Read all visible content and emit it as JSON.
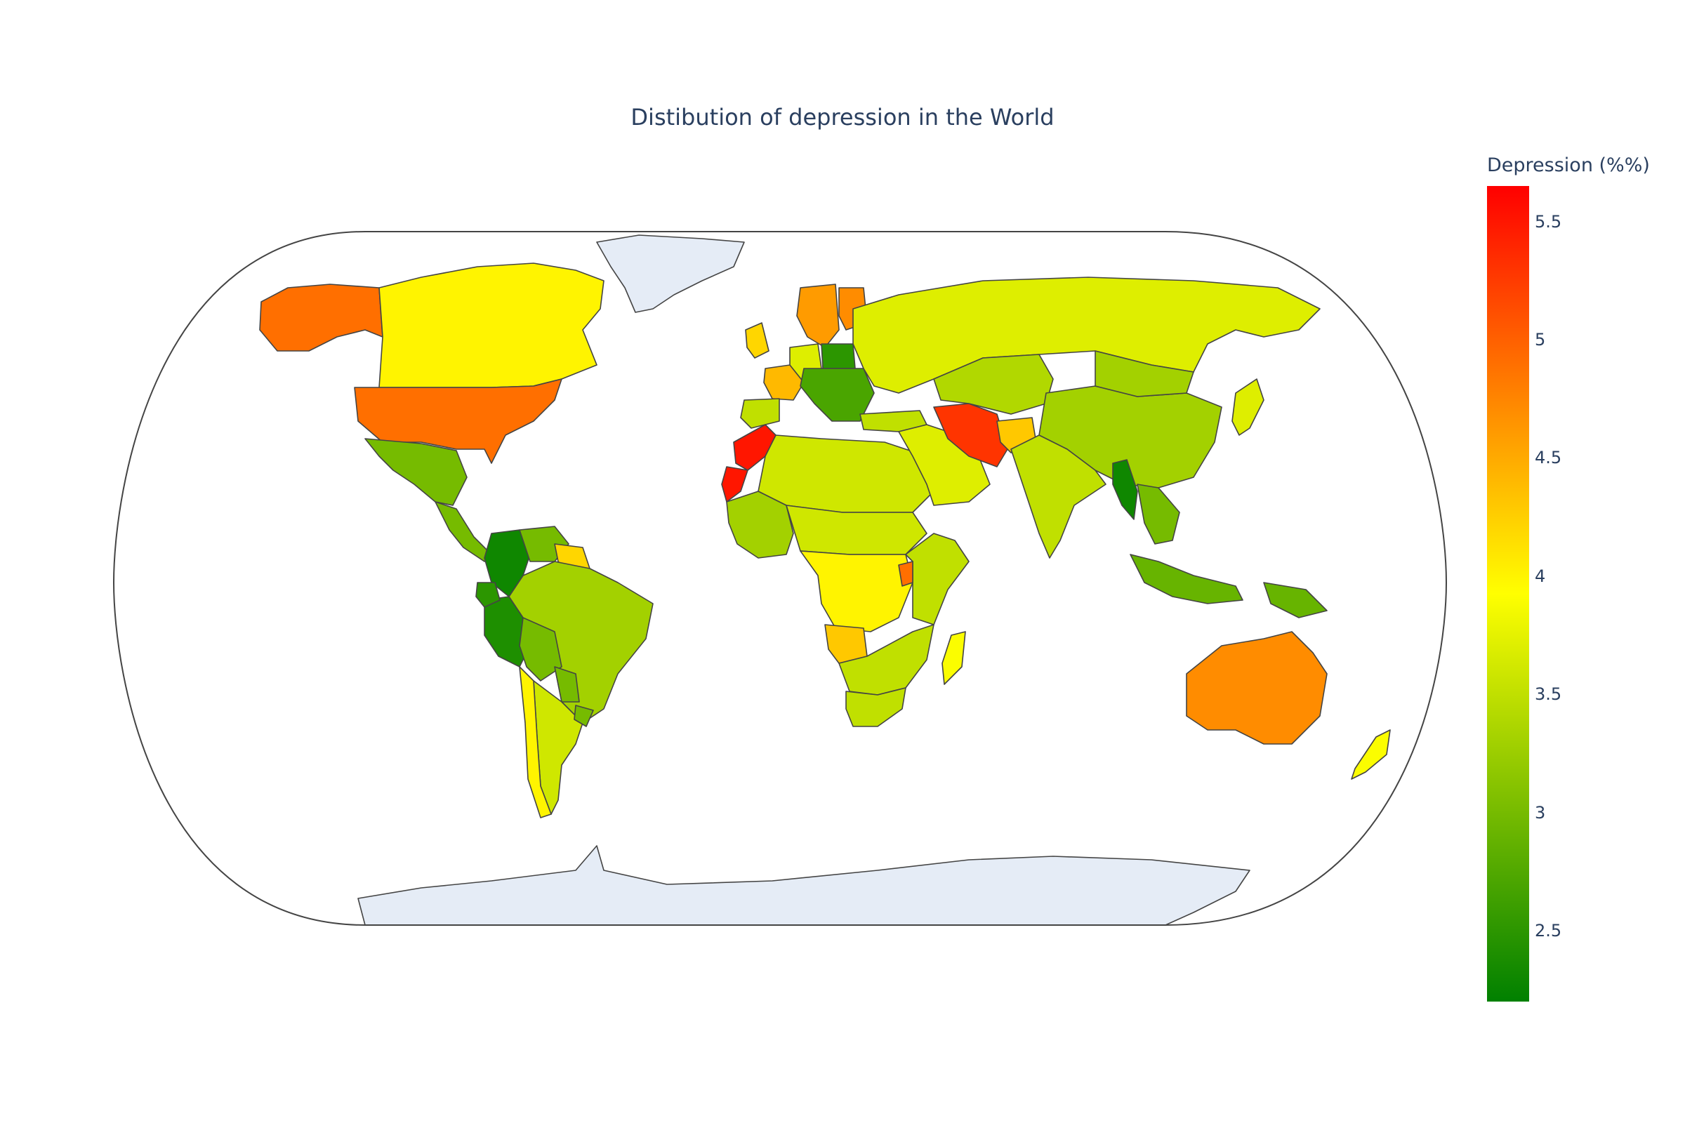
{
  "title": "Distibution of depression in the World",
  "colorbar": {
    "title": "Depression (%%)",
    "min": 2.2,
    "max": 5.65,
    "ticks": [
      "2.5",
      "3",
      "3.5",
      "4",
      "4.5",
      "5",
      "5.5"
    ],
    "colorscale": [
      "#008000",
      "#ffff00",
      "#ff0000"
    ]
  },
  "colors": {
    "no_data_land": "#e5ecf6",
    "border": "#444444",
    "frame": "#444444"
  },
  "chart_data": {
    "type": "choropleth",
    "projection": "natural earth",
    "value_range": [
      2.2,
      5.65
    ],
    "regions": [
      {
        "name": "Alaska",
        "value": 4.9
      },
      {
        "name": "Canada",
        "value": 4.0
      },
      {
        "name": "United States",
        "value": 4.9
      },
      {
        "name": "Mexico",
        "value": 3.0
      },
      {
        "name": "Central America",
        "value": 3.0
      },
      {
        "name": "Colombia",
        "value": 2.3
      },
      {
        "name": "Venezuela",
        "value": 3.0
      },
      {
        "name": "Guianas",
        "value": 4.2
      },
      {
        "name": "Peru",
        "value": 2.4
      },
      {
        "name": "Ecuador",
        "value": 2.5
      },
      {
        "name": "Brazil",
        "value": 3.3
      },
      {
        "name": "Bolivia",
        "value": 3.0
      },
      {
        "name": "Paraguay",
        "value": 3.0
      },
      {
        "name": "Argentina",
        "value": 3.6
      },
      {
        "name": "Chile",
        "value": 4.0
      },
      {
        "name": "Uruguay",
        "value": 3.0
      },
      {
        "name": "France",
        "value": 4.4
      },
      {
        "name": "Iberia",
        "value": 3.5
      },
      {
        "name": "United Kingdom",
        "value": 4.2
      },
      {
        "name": "Germany",
        "value": 3.7
      },
      {
        "name": "Scandinavia",
        "value": 4.6
      },
      {
        "name": "Finland",
        "value": 4.7
      },
      {
        "name": "Poland",
        "value": 2.5
      },
      {
        "name": "Eastern Europe",
        "value": 2.7
      },
      {
        "name": "Russia",
        "value": 3.7
      },
      {
        "name": "Turkey",
        "value": 3.5
      },
      {
        "name": "Morocco",
        "value": 5.5
      },
      {
        "name": "Western Sahara",
        "value": 5.5
      },
      {
        "name": "North Africa",
        "value": 3.6
      },
      {
        "name": "West Africa",
        "value": 3.3
      },
      {
        "name": "Sahel",
        "value": 3.6
      },
      {
        "name": "Central Africa",
        "value": 4.0
      },
      {
        "name": "East Africa",
        "value": 3.5
      },
      {
        "name": "Uganda",
        "value": 4.9
      },
      {
        "name": "Angola",
        "value": 4.3
      },
      {
        "name": "Southern Africa",
        "value": 3.5
      },
      {
        "name": "South Africa",
        "value": 3.5
      },
      {
        "name": "Madagascar",
        "value": 3.9
      },
      {
        "name": "Arabian Peninsula",
        "value": 3.7
      },
      {
        "name": "Iran",
        "value": 5.3
      },
      {
        "name": "Afghanistan",
        "value": 4.3
      },
      {
        "name": "Central Asia",
        "value": 3.4
      },
      {
        "name": "China",
        "value": 3.3
      },
      {
        "name": "Mongolia",
        "value": 3.3
      },
      {
        "name": "India",
        "value": 3.5
      },
      {
        "name": "Myanmar",
        "value": 2.3
      },
      {
        "name": "Southeast Asia",
        "value": 3.0
      },
      {
        "name": "Japan",
        "value": 3.7
      },
      {
        "name": "Indonesia",
        "value": 2.9
      },
      {
        "name": "Papua New Guinea",
        "value": 2.9
      },
      {
        "name": "Australia",
        "value": 4.7
      },
      {
        "name": "New Zealand",
        "value": 3.9
      }
    ]
  }
}
